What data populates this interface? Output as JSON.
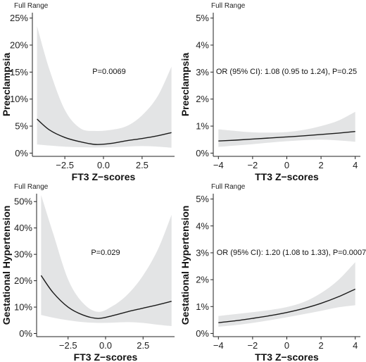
{
  "colors": {
    "ribbon": "#e3e4e5",
    "curve": "#1a1a1a",
    "axis": "#222222"
  },
  "chart_data": [
    {
      "type": "line",
      "subtitle": "Full Range",
      "xlabel": "FT3 Z−scores",
      "ylabel": "Preeclampsia",
      "annotation": "P=0.0069",
      "xlim": [
        -4.6,
        4.6
      ],
      "ylim": [
        -0.6,
        26
      ],
      "xticks": [
        -2.5,
        0.0,
        2.5
      ],
      "xtick_labels": [
        "−2.5",
        "0.0",
        "2.5"
      ],
      "yticks": [
        0,
        5,
        10,
        15,
        20,
        25
      ],
      "ytick_labels": [
        "0%",
        "5%",
        "10%",
        "15%",
        "20%",
        "25%"
      ],
      "series": [
        {
          "x": [
            -4.3,
            -3.5,
            -2.5,
            -1.5,
            -0.5,
            0.5,
            1.5,
            2.5,
            3.5,
            4.4
          ],
          "y": [
            6.3,
            4.3,
            2.9,
            2.1,
            1.6,
            1.8,
            2.3,
            2.7,
            3.2,
            3.8
          ],
          "lower": [
            1.6,
            1.4,
            1.2,
            1.1,
            1.05,
            1.1,
            1.2,
            1.3,
            1.2,
            1.0
          ],
          "upper": [
            23.5,
            15.5,
            8.0,
            4.6,
            4.1,
            4.3,
            5.0,
            7.0,
            10.5,
            16.0
          ]
        }
      ]
    },
    {
      "type": "line",
      "subtitle": "Full Range",
      "xlabel": "TT3 Z−scores",
      "ylabel": "Preeclampsia",
      "annotation": "OR (95% CI): 1.08 (0.95 to 1.24), P=0.25",
      "xlim": [
        -4.3,
        4.3
      ],
      "ylim": [
        -0.12,
        5.2
      ],
      "xticks": [
        -4,
        -2,
        0,
        2,
        4
      ],
      "xtick_labels": [
        "−4",
        "−2",
        "0",
        "2",
        "4"
      ],
      "yticks": [
        0,
        1,
        2,
        3,
        4,
        5
      ],
      "ytick_labels": [
        "0%",
        "1%",
        "2%",
        "3%",
        "4%",
        "5%"
      ],
      "series": [
        {
          "x": [
            -4,
            -3,
            -2,
            -1,
            0,
            1,
            2,
            3,
            4
          ],
          "y": [
            0.45,
            0.48,
            0.52,
            0.56,
            0.6,
            0.64,
            0.69,
            0.74,
            0.8
          ],
          "lower": [
            0.23,
            0.28,
            0.33,
            0.39,
            0.44,
            0.48,
            0.5,
            0.47,
            0.42
          ],
          "upper": [
            0.88,
            0.82,
            0.77,
            0.76,
            0.78,
            0.86,
            1.0,
            1.2,
            1.53
          ]
        }
      ]
    },
    {
      "type": "line",
      "subtitle": "Full Range",
      "xlabel": "FT3 Z−scores",
      "ylabel": "Gestational Hypertension",
      "annotation": "P=0.029",
      "xlim": [
        -4.6,
        4.6
      ],
      "ylim": [
        -1.2,
        53
      ],
      "xticks": [
        -2.5,
        0.0,
        2.5
      ],
      "xtick_labels": [
        "−2.5",
        "0.0",
        "2.5"
      ],
      "yticks": [
        0,
        10,
        20,
        30,
        40,
        50
      ],
      "ytick_labels": [
        "0%",
        "10%",
        "20%",
        "30%",
        "40%",
        "50%"
      ],
      "series": [
        {
          "x": [
            -4.3,
            -3.5,
            -2.5,
            -1.5,
            -0.5,
            0.5,
            1.5,
            2.5,
            3.5,
            4.4
          ],
          "y": [
            22.0,
            15.5,
            10.0,
            7.0,
            5.7,
            6.8,
            8.3,
            9.6,
            10.9,
            12.2
          ],
          "lower": [
            7.0,
            6.0,
            5.0,
            4.3,
            4.0,
            4.1,
            4.3,
            4.0,
            3.3,
            2.8
          ],
          "upper": [
            52.5,
            38.0,
            20.5,
            11.5,
            8.2,
            10.5,
            15.0,
            22.0,
            32.0,
            45.0
          ]
        }
      ]
    },
    {
      "type": "line",
      "subtitle": "Full Range",
      "xlabel": "TT3 Z−scores",
      "ylabel": "Gestational Hypertension",
      "annotation": "OR (95% CI): 1.20 (1.08 to 1.33), P=0.0007",
      "xlim": [
        -4.3,
        4.3
      ],
      "ylim": [
        -0.12,
        5.2
      ],
      "xticks": [
        -4,
        -2,
        0,
        2,
        4
      ],
      "xtick_labels": [
        "−4",
        "−2",
        "0",
        "2",
        "4"
      ],
      "yticks": [
        0,
        1,
        2,
        3,
        4,
        5
      ],
      "ytick_labels": [
        "0%",
        "1%",
        "2%",
        "3%",
        "4%",
        "5%"
      ],
      "series": [
        {
          "x": [
            -4,
            -3,
            -2,
            -1,
            0,
            1,
            2,
            3,
            4
          ],
          "y": [
            0.4,
            0.47,
            0.56,
            0.66,
            0.78,
            0.93,
            1.12,
            1.36,
            1.65
          ],
          "lower": [
            0.25,
            0.31,
            0.39,
            0.49,
            0.6,
            0.72,
            0.84,
            0.97,
            1.05
          ],
          "upper": [
            0.65,
            0.72,
            0.79,
            0.87,
            0.98,
            1.17,
            1.5,
            1.98,
            2.65
          ]
        }
      ]
    }
  ]
}
